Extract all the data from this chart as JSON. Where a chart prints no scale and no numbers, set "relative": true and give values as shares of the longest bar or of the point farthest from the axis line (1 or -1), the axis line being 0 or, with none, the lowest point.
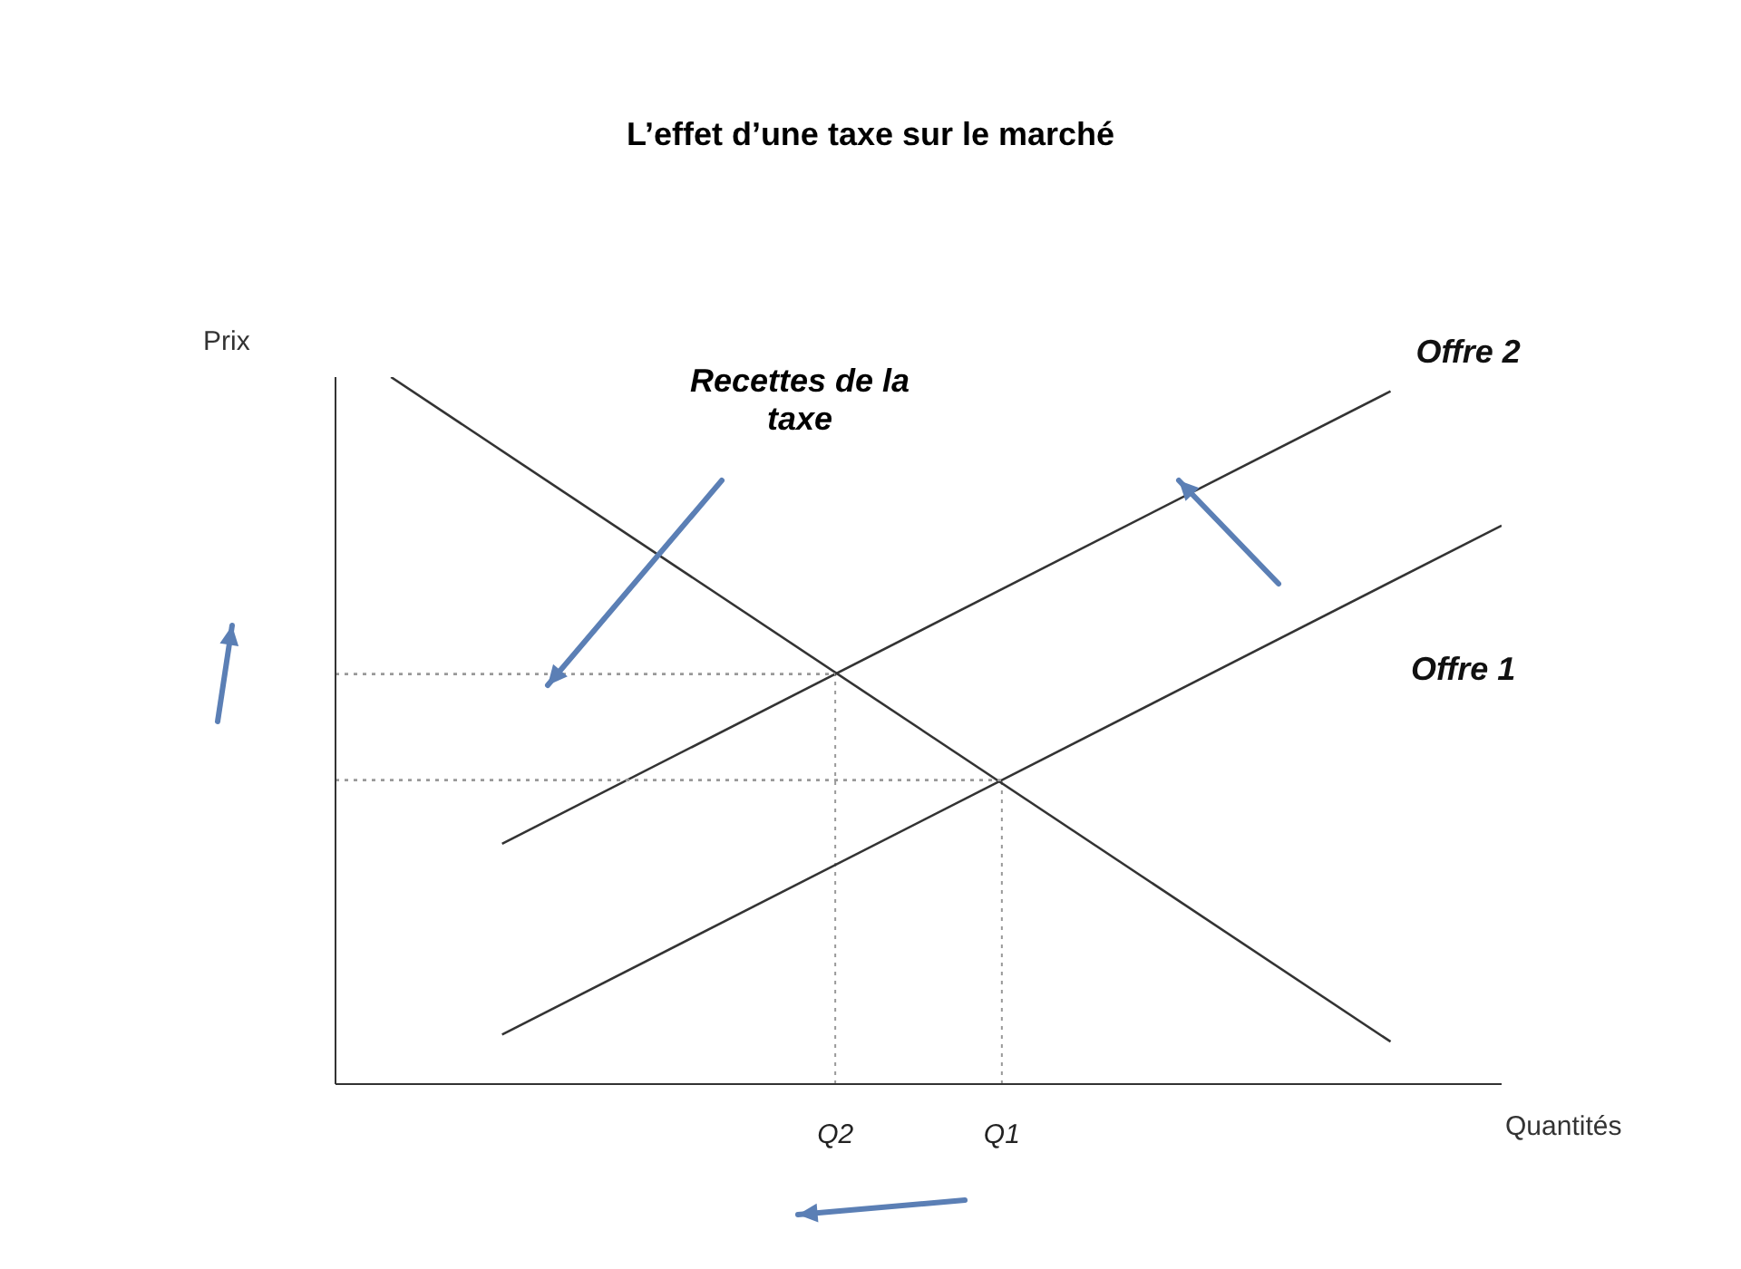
{
  "chart_data": {
    "type": "line",
    "title": "L’effet d’une taxe sur le marché",
    "xlabel": "Quantités",
    "ylabel": "Prix",
    "relative": true,
    "grid": false,
    "legend": false,
    "marker": "none",
    "annotations": [
      "Recettes de la taxe"
    ],
    "categories": [
      null,
      null,
      null,
      null,
      null,
      null,
      null,
      null,
      null,
      "Q2",
      null,
      null,
      "Q1",
      null,
      null,
      null,
      null,
      null,
      null,
      null,
      null,
      null
    ],
    "series": [
      {
        "color": "#333333",
        "values": [
          null,
          1,
          null,
          null,
          null,
          null,
          null,
          null,
          null,
          null,
          null,
          null,
          null,
          null,
          null,
          null,
          null,
          null,
          null,
          0.06,
          null,
          null
        ]
      },
      {
        "name": "Offre 2",
        "color": "#333333",
        "values": [
          null,
          null,
          null,
          0.34,
          null,
          null,
          null,
          null,
          null,
          null,
          null,
          null,
          null,
          null,
          null,
          null,
          null,
          null,
          null,
          0.98,
          null,
          null
        ]
      },
      {
        "name": "Offre 1",
        "color": "#333333",
        "values": [
          null,
          null,
          null,
          0.07,
          null,
          null,
          null,
          null,
          null,
          null,
          null,
          null,
          null,
          null,
          null,
          null,
          null,
          null,
          null,
          null,
          null,
          0.79
        ]
      },
      {
        "color": "#999999",
        "line_style": "dotted",
        "values": [
          0.58,
          null,
          null,
          null,
          null,
          null,
          null,
          null,
          null,
          0.58,
          null,
          null,
          null,
          null,
          null,
          null,
          null,
          null,
          null,
          null,
          null,
          null
        ]
      },
      {
        "color": "#999999",
        "line_style": "dotted",
        "values": [
          0.43,
          null,
          null,
          null,
          null,
          null,
          null,
          null,
          null,
          null,
          null,
          null,
          0.43,
          null,
          null,
          null,
          null,
          null,
          null,
          null,
          null,
          null
        ]
      }
    ],
    "ref_lines": [
      {
        "axis": "x",
        "value": "Q2",
        "color": "#999999",
        "line_style": "dotted"
      },
      {
        "axis": "x",
        "value": "Q1",
        "color": "#999999",
        "line_style": "dotted"
      }
    ]
  }
}
